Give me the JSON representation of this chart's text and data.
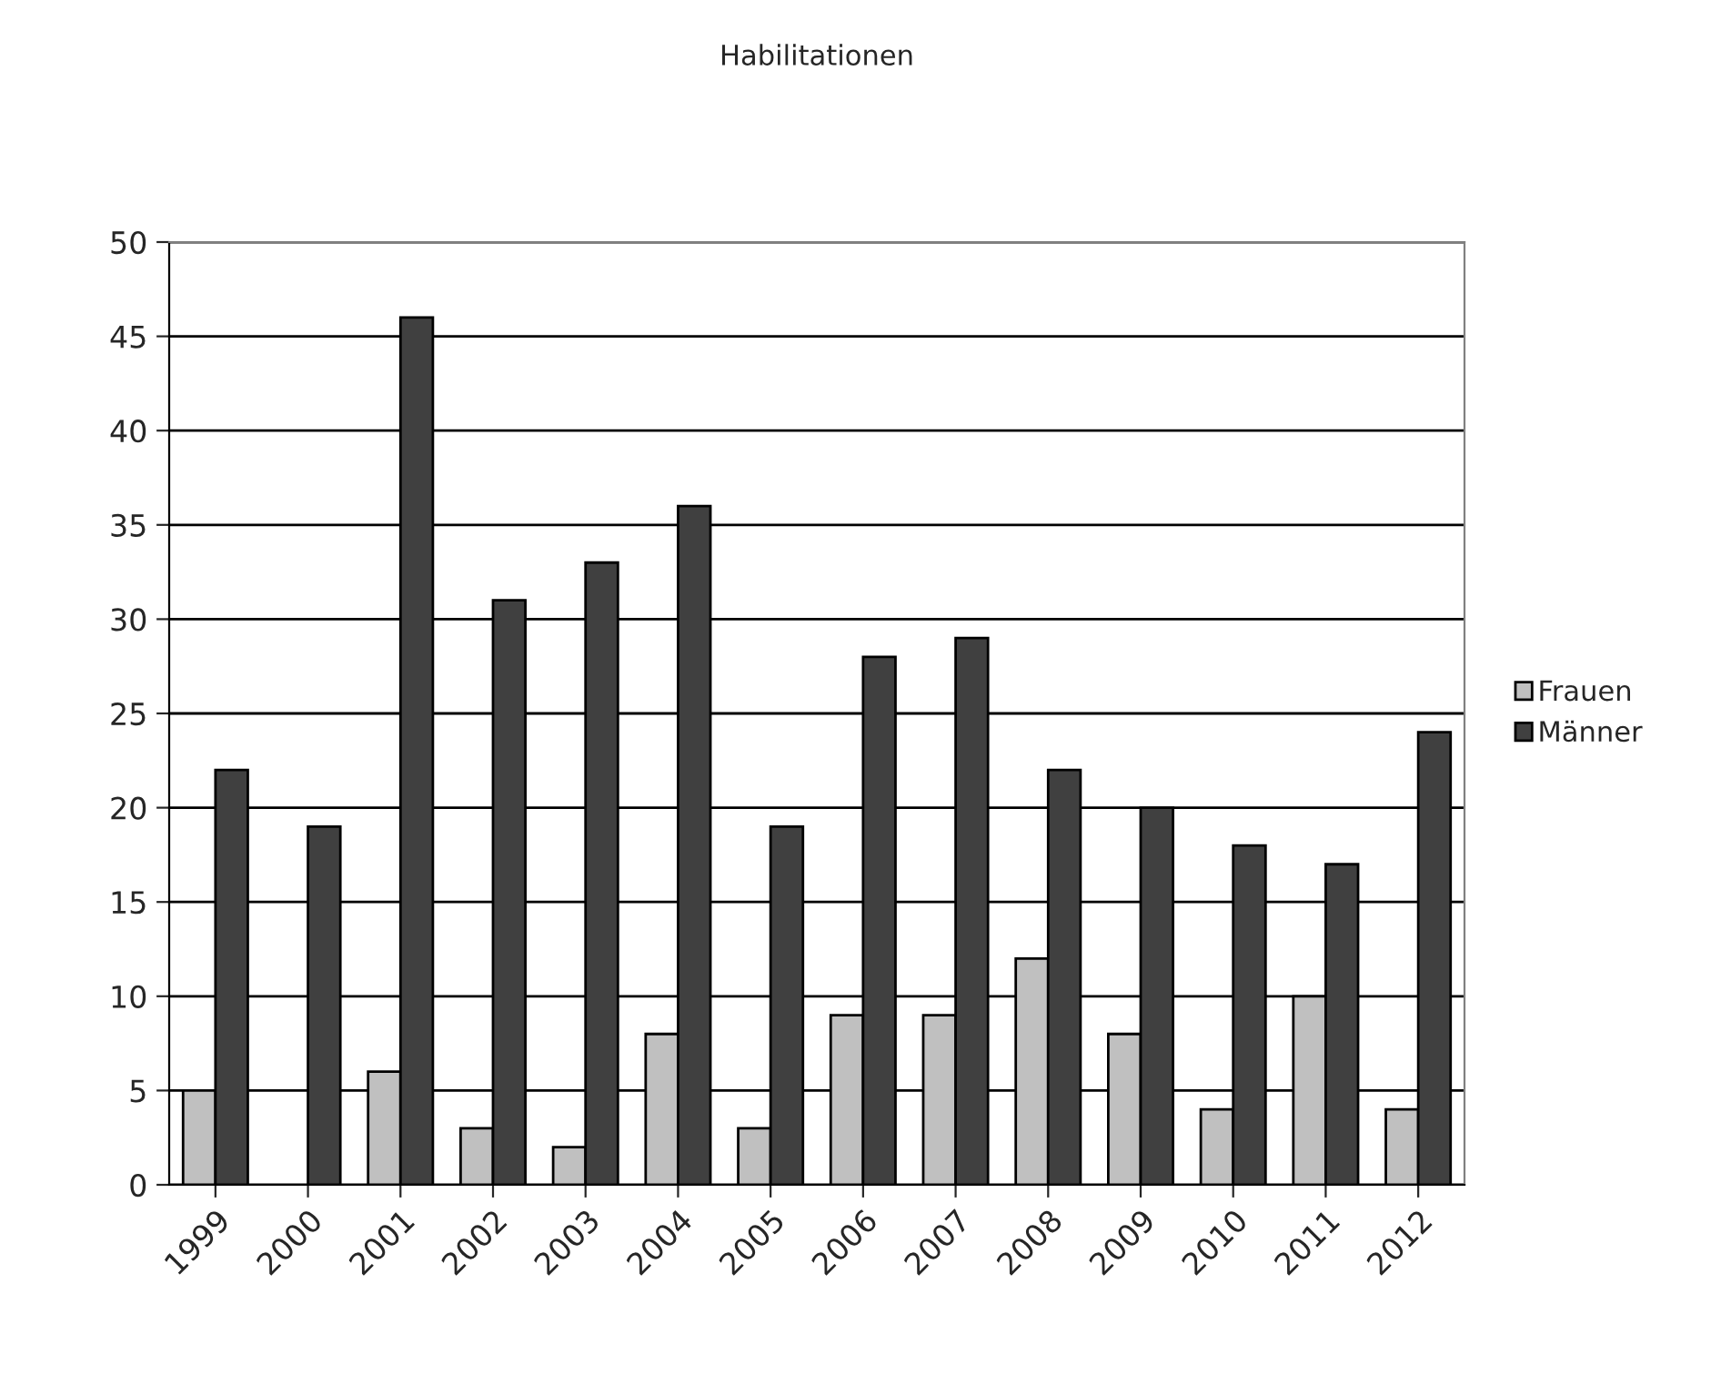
{
  "chart_data": {
    "type": "bar",
    "title": "Habilitationen",
    "categories": [
      "1999",
      "2000",
      "2001",
      "2002",
      "2003",
      "2004",
      "2005",
      "2006",
      "2007",
      "2008",
      "2009",
      "2010",
      "2011",
      "2012"
    ],
    "series": [
      {
        "name": "Frauen",
        "color": "#c0c0c0",
        "values": [
          5,
          0,
          6,
          3,
          2,
          8,
          3,
          9,
          9,
          12,
          8,
          4,
          10,
          4
        ]
      },
      {
        "name": "Männer",
        "color": "#404040",
        "values": [
          22,
          19,
          46,
          31,
          33,
          36,
          19,
          28,
          29,
          22,
          20,
          18,
          17,
          24
        ]
      }
    ],
    "ylim": [
      0,
      50
    ],
    "yticks": [
      0,
      5,
      10,
      15,
      20,
      25,
      30,
      35,
      40,
      45,
      50
    ],
    "grid": "y",
    "legend": "right"
  }
}
